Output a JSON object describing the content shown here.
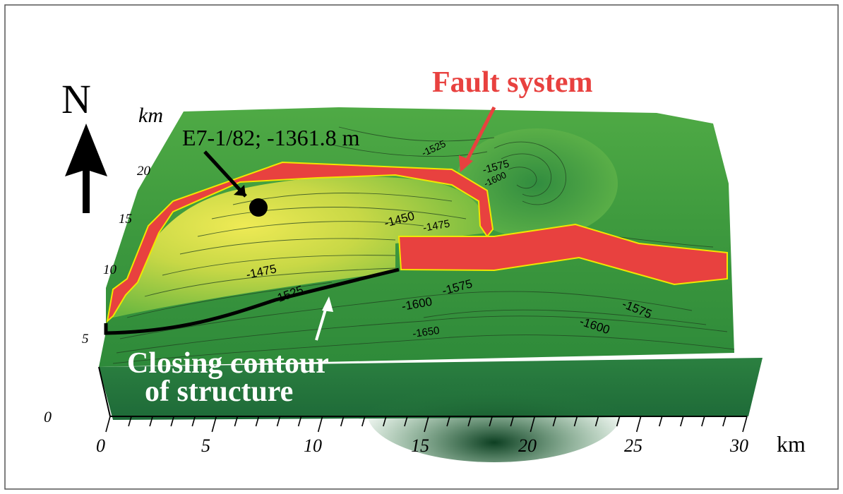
{
  "annotations": {
    "north": "N",
    "fault_system": "Fault system",
    "well": "E7-1/82; -1361.8 m",
    "closing_line1": "Closing contour",
    "closing_line2": "of structure"
  },
  "axes": {
    "x_unit": "km",
    "y_unit": "km",
    "x_ticks": [
      "0",
      "5",
      "10",
      "15",
      "20",
      "25",
      "30"
    ],
    "y_ticks": [
      "0",
      "5",
      "10",
      "15",
      "20"
    ]
  },
  "contour_labels": [
    "-1525",
    "-1575",
    "-1600",
    "-1450",
    "-1475",
    "-1475",
    "-1525",
    "-1575",
    "-1600",
    "-1650",
    "-1600",
    "-1575"
  ],
  "colors": {
    "fault": "#e8413f",
    "fault_outline": "#f2e600",
    "terrain_low": "#2a8a3a",
    "terrain_high": "#e6e64a",
    "closing_contour": "#000000",
    "fault_label": "#e8413f"
  }
}
